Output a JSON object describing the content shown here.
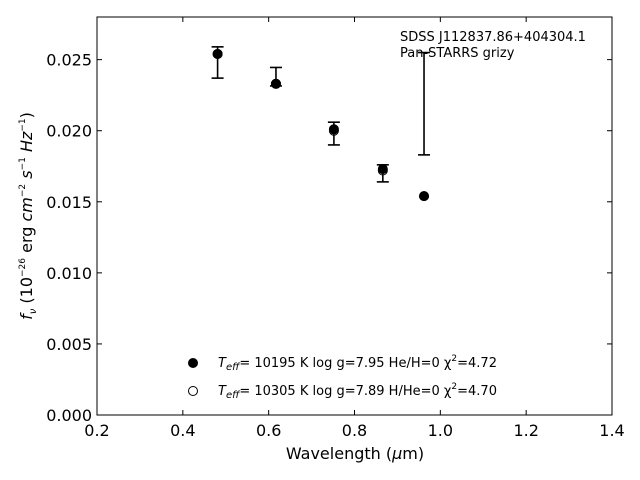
{
  "chart_data": {
    "type": "scatter",
    "xlabel": "Wavelength",
    "xlabel_unit_prefix": "μ",
    "xlabel_unit_suffix": "m",
    "ylabel": {
      "f": "f",
      "nu": "ν",
      "open": " (10",
      "exp": "−26",
      "erg": " erg ",
      "cm": "cm",
      "cm_exp": "−2",
      "s": " s",
      "s_exp": "−1",
      "hz": " Hz",
      "hz_exp": "−1",
      "close": ")"
    },
    "xlim": [
      0.2,
      1.4
    ],
    "ylim": [
      0.0,
      0.028
    ],
    "xticks": [
      0.2,
      0.4,
      0.6,
      0.8,
      1.0,
      1.2,
      1.4
    ],
    "xtick_labels": [
      "0.2",
      "0.4",
      "0.6",
      "0.8",
      "1.0",
      "1.2",
      "1.4"
    ],
    "yticks": [
      0.0,
      0.005,
      0.01,
      0.015,
      0.02,
      0.025
    ],
    "ytick_labels": [
      "0.000",
      "0.005",
      "0.010",
      "0.015",
      "0.020",
      "0.025"
    ],
    "grid": false,
    "annotations": [
      "SDSS J112837.86+404304.1",
      "Pan-STARRS grizy"
    ],
    "observations": {
      "x": [
        0.481,
        0.617,
        0.752,
        0.866,
        0.962
      ],
      "y": [
        0.0248,
        0.0238,
        0.0198,
        0.017,
        0.0219
      ],
      "yerr": [
        0.0011,
        0.00065,
        0.0008,
        0.0006,
        0.0036
      ]
    },
    "series": [
      {
        "marker": "filled",
        "teff_label": "T",
        "teff_sub": "eff",
        "text": "= 10195 K  log g=7.95  He/H=0  χ",
        "chi_exp": "2",
        "chi_val": "=4.72",
        "x": [
          0.481,
          0.617,
          0.752,
          0.866,
          0.962
        ],
        "y": [
          0.0254,
          0.0233,
          0.0201,
          0.0173,
          0.0154
        ]
      },
      {
        "marker": "open",
        "teff_label": "T",
        "teff_sub": "eff",
        "text": "= 10305 K  log g=7.89  H/He=0  χ",
        "chi_exp": "2",
        "chi_val": "=4.70",
        "x": [
          0.481,
          0.617,
          0.752,
          0.866,
          0.962
        ],
        "y": [
          0.0254,
          0.0233,
          0.02,
          0.0172,
          0.0154
        ]
      }
    ]
  }
}
